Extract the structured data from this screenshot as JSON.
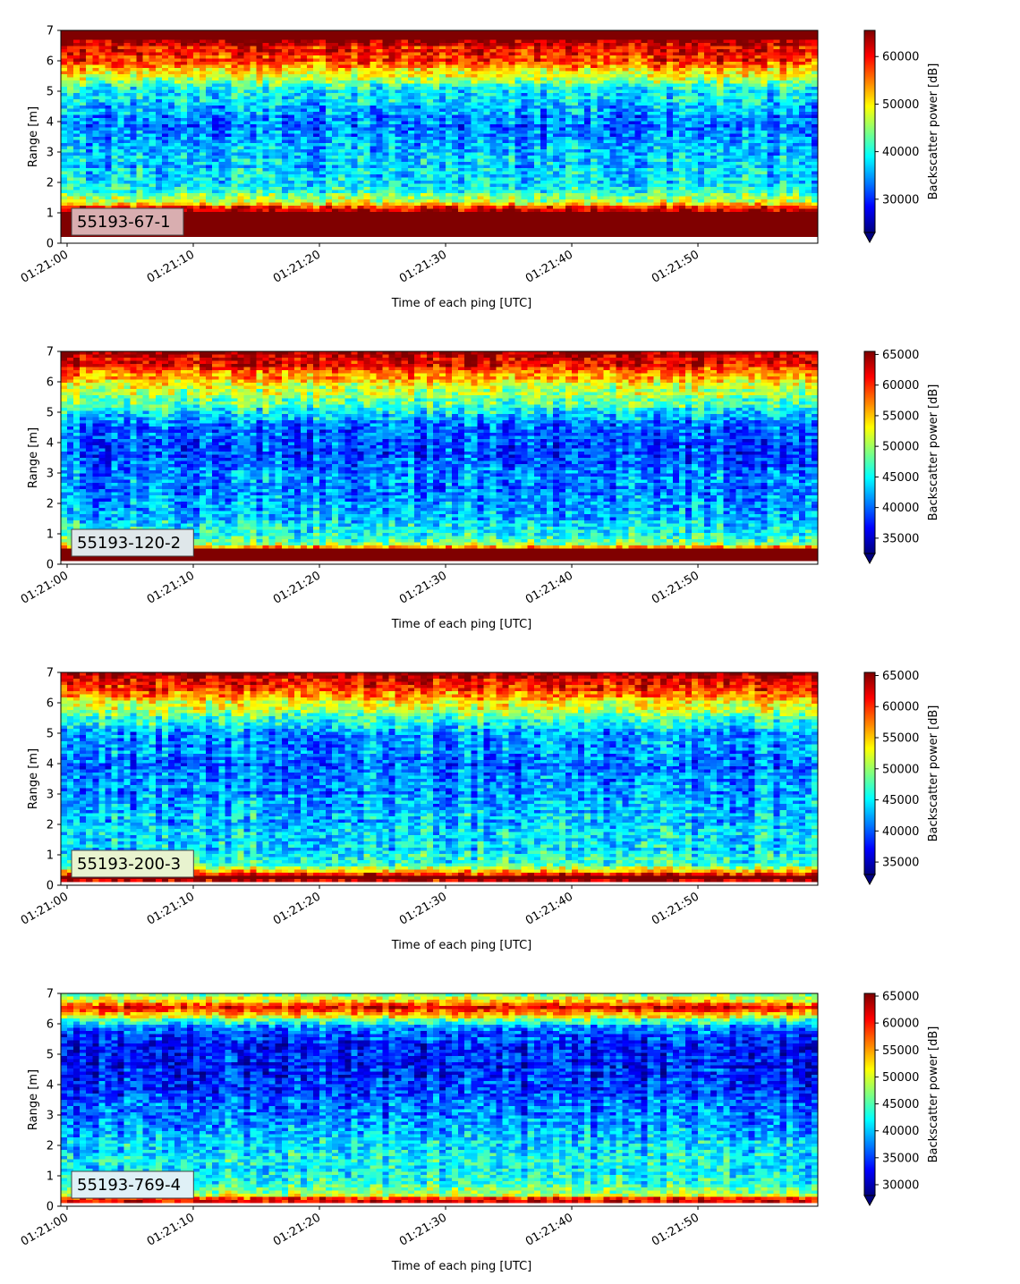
{
  "chart_data": [
    {
      "type": "heatmap",
      "label": "55193-67-1",
      "label_box_color": "#d9aeb0",
      "xlabel": "Time of each ping [UTC]",
      "ylabel": "Range [m]",
      "colorbar_label": "Backscatter power [dB]",
      "colormap": "jet",
      "colorbar_extend": "min",
      "x_ticks": [
        "01:21:00",
        "01:21:10",
        "01:21:20",
        "01:21:30",
        "01:21:40",
        "01:21:50"
      ],
      "x_range_seconds": [
        0,
        59.5
      ],
      "y_ticks": [
        0,
        1,
        2,
        3,
        4,
        5,
        6,
        7
      ],
      "ylim": [
        0,
        7
      ],
      "y_data_range": [
        0.2,
        7
      ],
      "clim": [
        23000,
        65500
      ],
      "colorbar_ticks": [
        30000,
        40000,
        50000,
        60000
      ],
      "profile": [
        {
          "range": 0.2,
          "level": 1.0
        },
        {
          "range": 1.0,
          "level": 1.0
        },
        {
          "range": 1.15,
          "level": 0.92
        },
        {
          "range": 1.3,
          "level": 0.62
        },
        {
          "range": 1.6,
          "level": 0.45
        },
        {
          "range": 2.0,
          "level": 0.36
        },
        {
          "range": 3.0,
          "level": 0.3
        },
        {
          "range": 4.0,
          "level": 0.24
        },
        {
          "range": 4.6,
          "level": 0.34
        },
        {
          "range": 5.2,
          "level": 0.42
        },
        {
          "range": 5.6,
          "level": 0.65
        },
        {
          "range": 6.0,
          "level": 0.82
        },
        {
          "range": 6.4,
          "level": 0.86
        },
        {
          "range": 6.7,
          "level": 0.97
        },
        {
          "range": 7.0,
          "level": 1.0
        }
      ]
    },
    {
      "type": "heatmap",
      "label": "55193-120-2",
      "label_box_color": "#dfe7ea",
      "xlabel": "Time of each ping [UTC]",
      "ylabel": "Range [m]",
      "colorbar_label": "Backscatter power [dB]",
      "colormap": "jet",
      "colorbar_extend": "min",
      "x_ticks": [
        "01:21:00",
        "01:21:10",
        "01:21:20",
        "01:21:30",
        "01:21:40",
        "01:21:50"
      ],
      "x_range_seconds": [
        0,
        59.5
      ],
      "y_ticks": [
        0,
        1,
        2,
        3,
        4,
        5,
        6,
        7
      ],
      "ylim": [
        0,
        7
      ],
      "y_data_range": [
        0.1,
        7
      ],
      "clim": [
        32500,
        65500
      ],
      "colorbar_ticks": [
        35000,
        40000,
        45000,
        50000,
        55000,
        60000,
        65000
      ],
      "profile": [
        {
          "range": 0.1,
          "level": 1.0
        },
        {
          "range": 0.5,
          "level": 1.0
        },
        {
          "range": 0.6,
          "level": 0.55
        },
        {
          "range": 0.9,
          "level": 0.45
        },
        {
          "range": 1.3,
          "level": 0.33
        },
        {
          "range": 2.0,
          "level": 0.28
        },
        {
          "range": 3.0,
          "level": 0.25
        },
        {
          "range": 4.0,
          "level": 0.18
        },
        {
          "range": 4.8,
          "level": 0.3
        },
        {
          "range": 5.5,
          "level": 0.5
        },
        {
          "range": 6.0,
          "level": 0.65
        },
        {
          "range": 6.5,
          "level": 0.85
        },
        {
          "range": 7.0,
          "level": 0.97
        }
      ]
    },
    {
      "type": "heatmap",
      "label": "55193-200-3",
      "label_box_color": "#e8f3cf",
      "xlabel": "Time of each ping [UTC]",
      "ylabel": "Range [m]",
      "colorbar_label": "Backscatter power [dB]",
      "colormap": "jet",
      "colorbar_extend": "min",
      "x_ticks": [
        "01:21:00",
        "01:21:10",
        "01:21:20",
        "01:21:30",
        "01:21:40",
        "01:21:50"
      ],
      "x_range_seconds": [
        0,
        59.5
      ],
      "y_ticks": [
        0,
        1,
        2,
        3,
        4,
        5,
        6,
        7
      ],
      "ylim": [
        0,
        7
      ],
      "y_data_range": [
        0.1,
        7
      ],
      "clim": [
        33000,
        65500
      ],
      "colorbar_ticks": [
        35000,
        40000,
        45000,
        50000,
        55000,
        60000,
        65000
      ],
      "profile": [
        {
          "range": 0.1,
          "level": 0.95
        },
        {
          "range": 0.3,
          "level": 1.0
        },
        {
          "range": 0.45,
          "level": 0.7
        },
        {
          "range": 0.7,
          "level": 0.42
        },
        {
          "range": 1.2,
          "level": 0.35
        },
        {
          "range": 2.0,
          "level": 0.33
        },
        {
          "range": 3.0,
          "level": 0.28
        },
        {
          "range": 4.0,
          "level": 0.24
        },
        {
          "range": 5.0,
          "level": 0.3
        },
        {
          "range": 5.6,
          "level": 0.48
        },
        {
          "range": 6.0,
          "level": 0.62
        },
        {
          "range": 6.5,
          "level": 0.85
        },
        {
          "range": 7.0,
          "level": 0.98
        }
      ]
    },
    {
      "type": "heatmap",
      "label": "55193-769-4",
      "label_box_color": "#dff0f6",
      "xlabel": "Time of each ping [UTC]",
      "ylabel": "Range [m]",
      "colorbar_label": "Backscatter power [dB]",
      "colormap": "jet",
      "colorbar_extend": "min",
      "x_ticks": [
        "01:21:00",
        "01:21:10",
        "01:21:20",
        "01:21:30",
        "01:21:40",
        "01:21:50"
      ],
      "x_range_seconds": [
        0,
        59.5
      ],
      "y_ticks": [
        0,
        1,
        2,
        3,
        4,
        5,
        6,
        7
      ],
      "ylim": [
        0,
        7
      ],
      "y_data_range": [
        0.1,
        7
      ],
      "clim": [
        28000,
        65500
      ],
      "colorbar_ticks": [
        30000,
        35000,
        40000,
        45000,
        50000,
        55000,
        60000,
        65000
      ],
      "profile": [
        {
          "range": 0.1,
          "level": 0.8
        },
        {
          "range": 0.2,
          "level": 0.98
        },
        {
          "range": 0.35,
          "level": 0.6
        },
        {
          "range": 0.6,
          "level": 0.45
        },
        {
          "range": 1.0,
          "level": 0.4
        },
        {
          "range": 2.0,
          "level": 0.33
        },
        {
          "range": 3.0,
          "level": 0.25
        },
        {
          "range": 4.0,
          "level": 0.17
        },
        {
          "range": 5.0,
          "level": 0.14
        },
        {
          "range": 5.8,
          "level": 0.2
        },
        {
          "range": 6.2,
          "level": 0.55
        },
        {
          "range": 6.5,
          "level": 0.9
        },
        {
          "range": 6.8,
          "level": 0.6
        },
        {
          "range": 7.0,
          "level": 0.5
        }
      ]
    }
  ]
}
